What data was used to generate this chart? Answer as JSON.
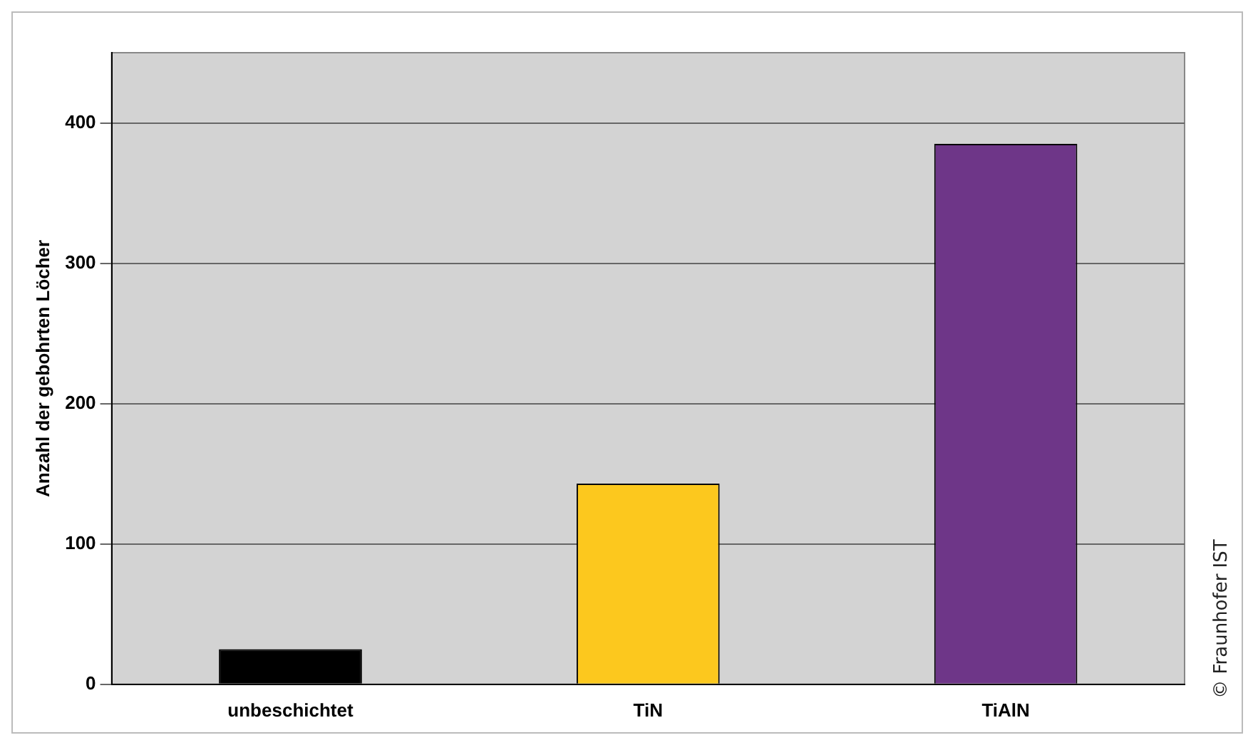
{
  "chart_data": {
    "type": "bar",
    "ylabel": "Anzahl der gebohrten Löcher",
    "categories": [
      "unbeschichtet",
      "TiN",
      "TiAlN"
    ],
    "values": [
      25,
      143,
      385
    ],
    "colors": [
      "#000000",
      "#fcc81e",
      "#6e3688"
    ],
    "ylim": [
      0,
      450
    ],
    "yticks": [
      0,
      100,
      200,
      300,
      400
    ],
    "grid": "y",
    "legend": false,
    "annotations": [
      "© Fraunhofer IST"
    ]
  }
}
